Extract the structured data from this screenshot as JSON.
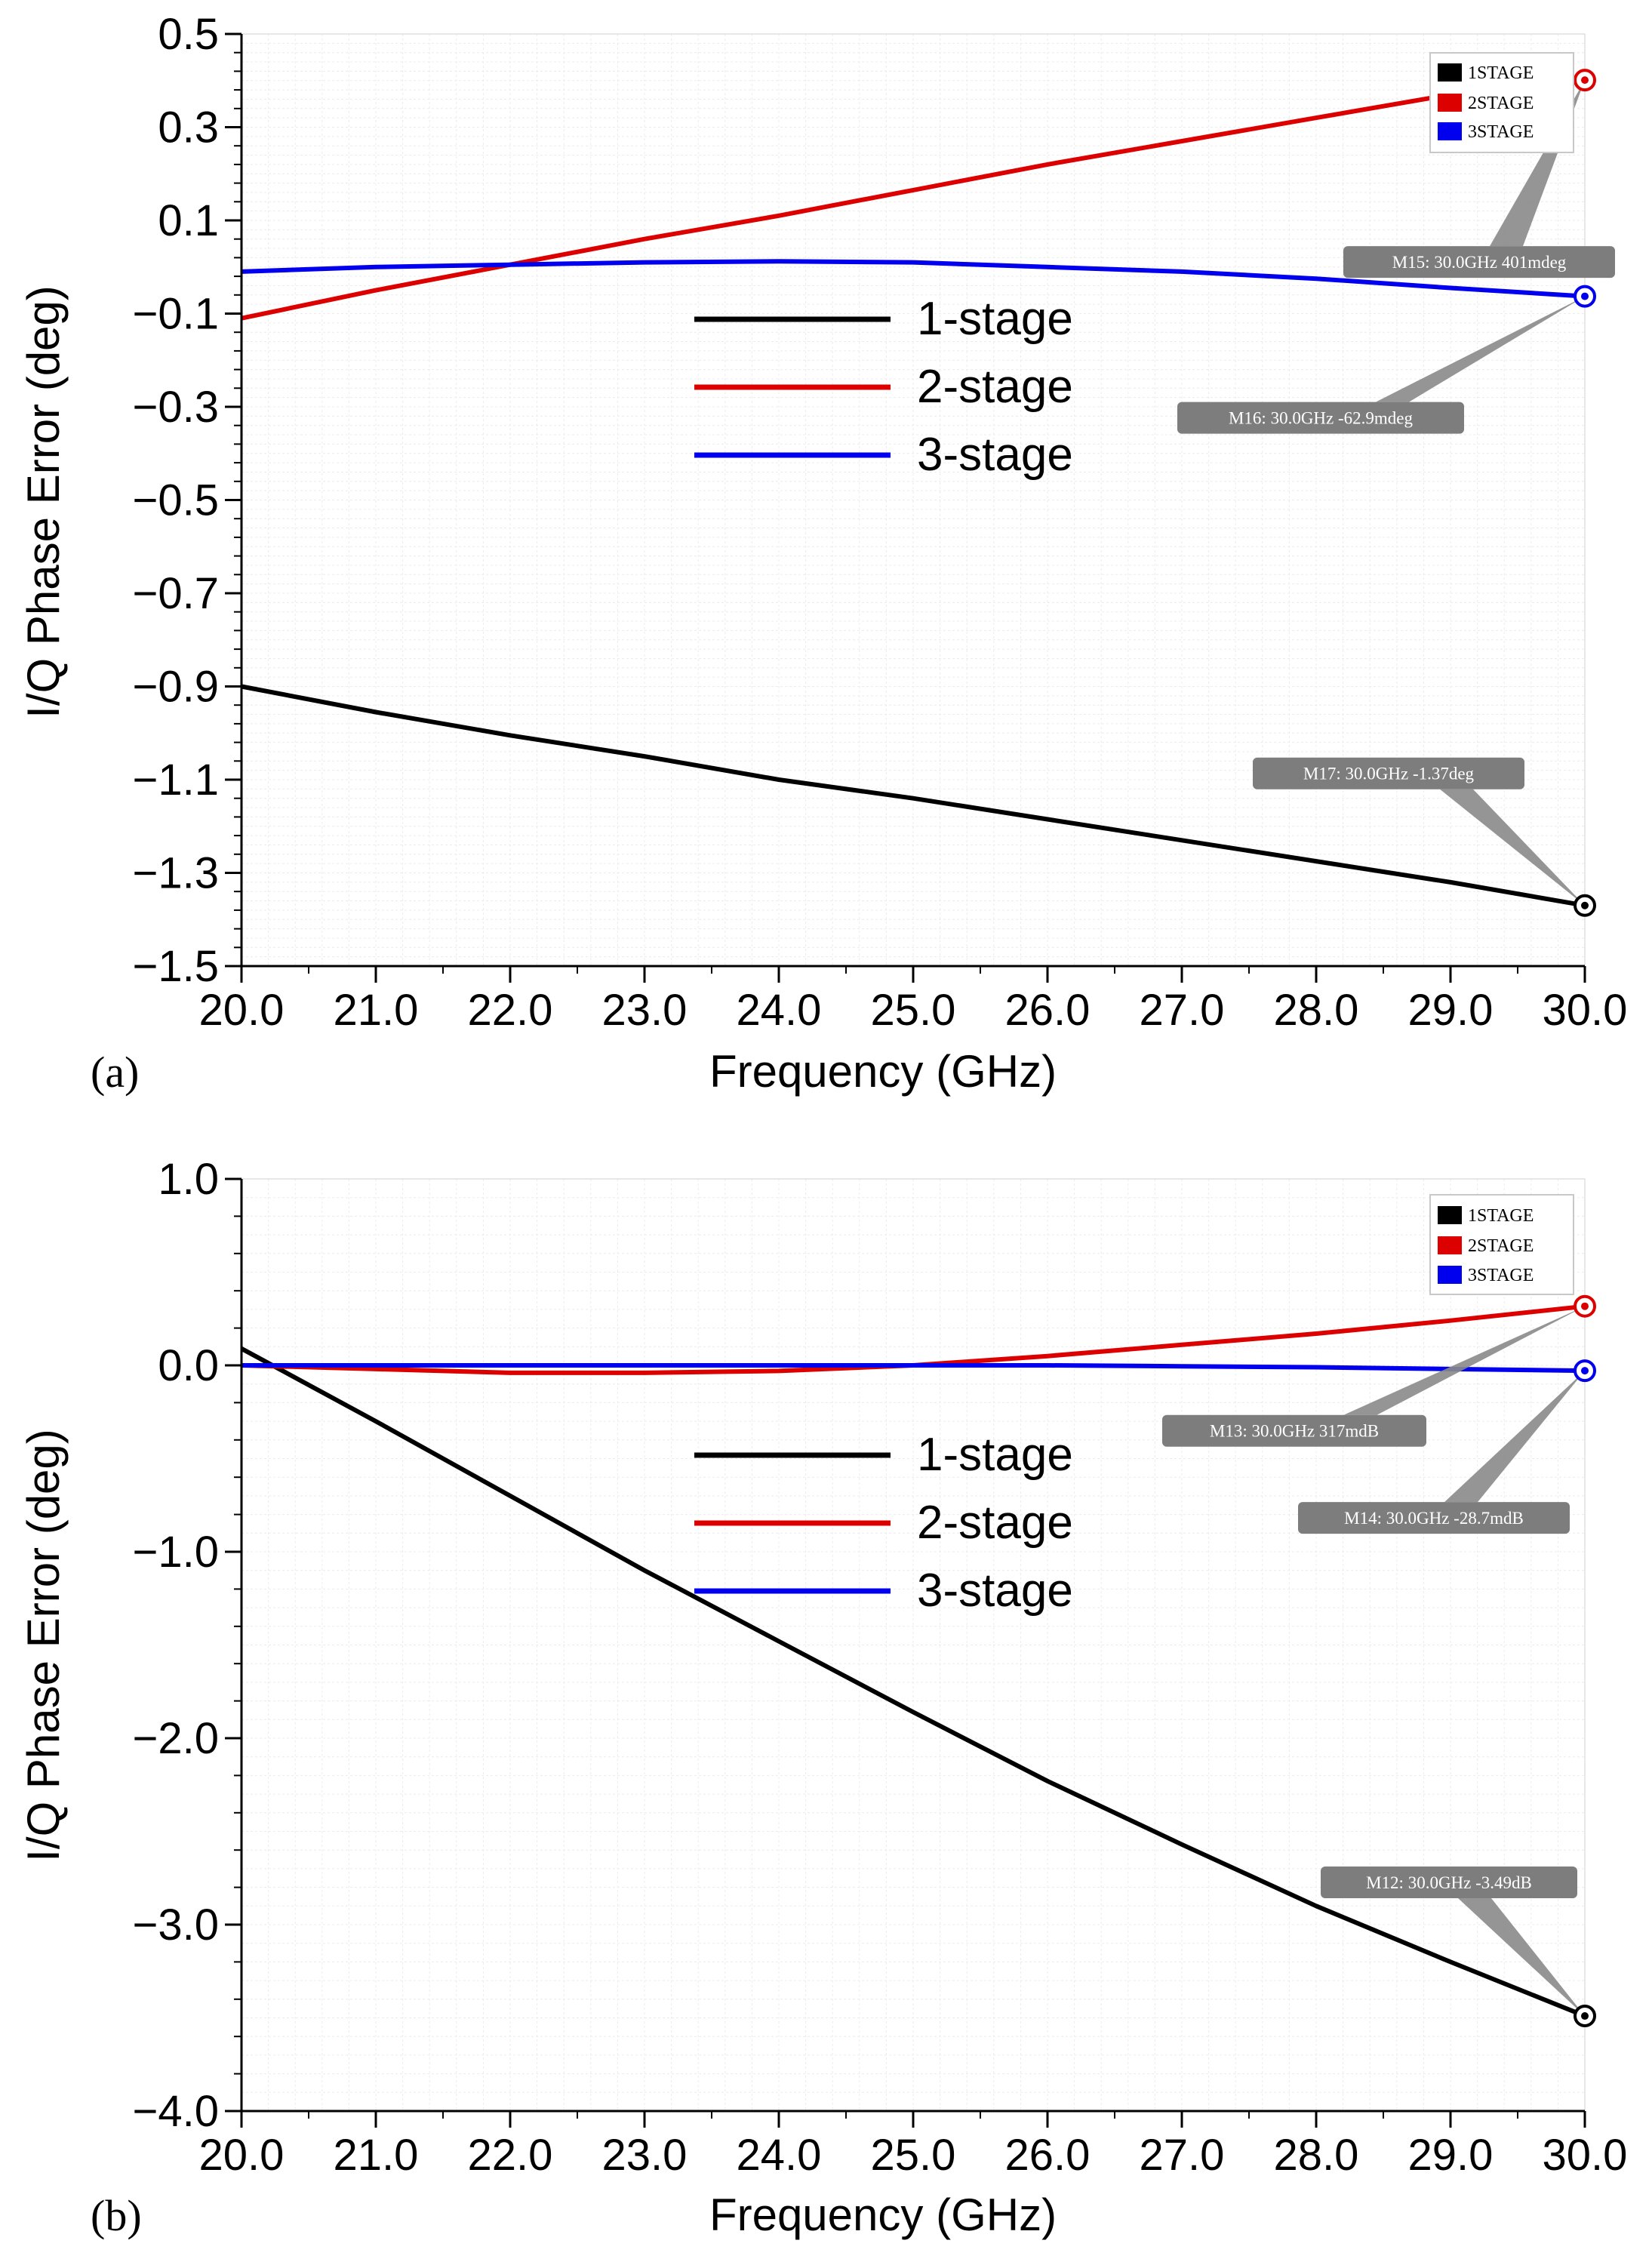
{
  "chart_data": [
    {
      "type": "line",
      "panel_label": "(a)",
      "xlabel": "Frequency (GHz)",
      "ylabel": "I/Q Phase Error (deg)",
      "xlim": [
        20,
        30
      ],
      "ylim": [
        -1.5,
        0.5
      ],
      "x_ticks": [
        "20.0",
        "21.0",
        "22.0",
        "23.0",
        "24.0",
        "25.0",
        "26.0",
        "27.0",
        "28.0",
        "29.0",
        "30.0"
      ],
      "y_ticks": [
        "0.5",
        "0.3",
        "0.1",
        "-0.1",
        "-0.3",
        "-0.5",
        "-0.7",
        "-0.9",
        "-1.1",
        "-1.3",
        "-1.5"
      ],
      "y_tick_values": [
        0.5,
        0.3,
        0.1,
        -0.1,
        -0.3,
        -0.5,
        -0.7,
        -0.9,
        -1.1,
        -1.3,
        -1.5
      ],
      "x": [
        20,
        21,
        22,
        23,
        24,
        25,
        26,
        27,
        28,
        29,
        30
      ],
      "series": [
        {
          "name": "1-stage",
          "sim_name": "1STAGE",
          "color": "#000000",
          "values": [
            -0.9,
            -0.955,
            -1.005,
            -1.05,
            -1.1,
            -1.14,
            -1.185,
            -1.23,
            -1.275,
            -1.32,
            -1.37
          ]
        },
        {
          "name": "2-stage",
          "sim_name": "2STAGE",
          "color": "#dd0000",
          "values": [
            -0.11,
            -0.05,
            0.005,
            0.06,
            0.11,
            0.165,
            0.22,
            0.27,
            0.32,
            0.37,
            0.401
          ]
        },
        {
          "name": "3-stage",
          "sim_name": "3STAGE",
          "color": "#0000ee",
          "values": [
            -0.01,
            0.0,
            0.005,
            0.01,
            0.012,
            0.01,
            0.0,
            -0.01,
            -0.025,
            -0.045,
            -0.0629
          ]
        }
      ],
      "markers": [
        {
          "label": "M15: 30.0GHz 401mdeg",
          "series": 1,
          "x": 30,
          "y": 0.401
        },
        {
          "label": "M16: 30.0GHz -62.9mdeg",
          "series": 2,
          "x": 30,
          "y": -0.0629
        },
        {
          "label": "M17: 30.0GHz -1.37deg",
          "series": 0,
          "x": 30,
          "y": -1.37
        }
      ],
      "legend": [
        "1-stage",
        "2-stage",
        "3-stage"
      ],
      "sim_legend": [
        "1STAGE",
        "2STAGE",
        "3STAGE"
      ]
    },
    {
      "type": "line",
      "panel_label": "(b)",
      "xlabel": "Frequency (GHz)",
      "ylabel": "I/Q Phase Error (deg)",
      "xlim": [
        20,
        30
      ],
      "ylim": [
        -4.0,
        1.0
      ],
      "x_ticks": [
        "20.0",
        "21.0",
        "22.0",
        "23.0",
        "24.0",
        "25.0",
        "26.0",
        "27.0",
        "28.0",
        "29.0",
        "30.0"
      ],
      "y_ticks": [
        "1.0",
        "0.0",
        "-1.0",
        "-2.0",
        "-3.0",
        "-4.0"
      ],
      "y_tick_values": [
        1.0,
        0.0,
        -1.0,
        -2.0,
        -3.0,
        -4.0
      ],
      "x": [
        20,
        21,
        22,
        23,
        24,
        25,
        26,
        27,
        28,
        29,
        30
      ],
      "series": [
        {
          "name": "1-stage",
          "sim_name": "1STAGE",
          "color": "#000000",
          "values": [
            0.09,
            -0.3,
            -0.7,
            -1.1,
            -1.48,
            -1.86,
            -2.23,
            -2.57,
            -2.9,
            -3.2,
            -3.49
          ]
        },
        {
          "name": "2-stage",
          "sim_name": "2STAGE",
          "color": "#dd0000",
          "values": [
            0.0,
            -0.02,
            -0.04,
            -0.04,
            -0.03,
            0.0,
            0.05,
            0.11,
            0.17,
            0.24,
            0.317
          ]
        },
        {
          "name": "3-stage",
          "sim_name": "3STAGE",
          "color": "#0000ee",
          "values": [
            0.0,
            0.0,
            0.0,
            0.0,
            0.0,
            0.0,
            0.0,
            -0.005,
            -0.01,
            -0.02,
            -0.0287
          ]
        }
      ],
      "markers": [
        {
          "label": "M13: 30.0GHz 317mdB",
          "series": 1,
          "x": 30,
          "y": 0.317
        },
        {
          "label": "M14: 30.0GHz -28.7mdB",
          "series": 2,
          "x": 30,
          "y": -0.0287
        },
        {
          "label": "M12: 30.0GHz -3.49dB",
          "series": 0,
          "x": 30,
          "y": -3.49
        }
      ],
      "legend": [
        "1-stage",
        "2-stage",
        "3-stage"
      ],
      "sim_legend": [
        "1STAGE",
        "2STAGE",
        "3STAGE"
      ]
    }
  ]
}
